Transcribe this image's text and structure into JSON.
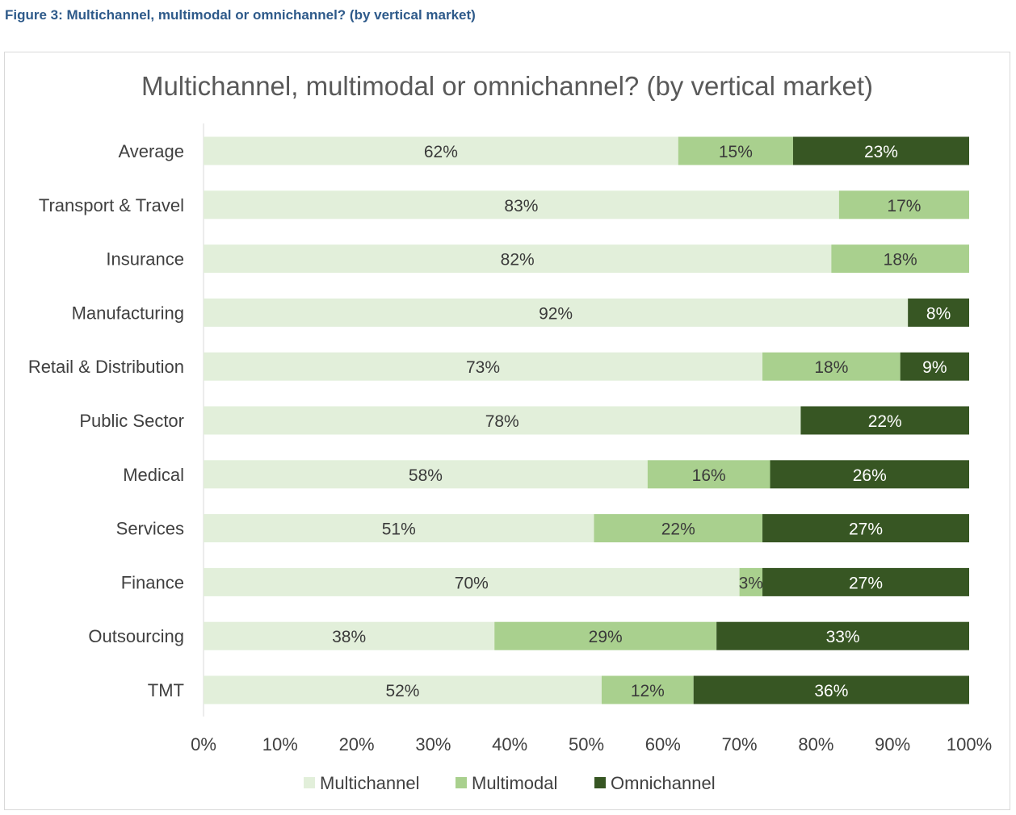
{
  "figure_caption": "Figure 3: Multichannel, multimodal or omnichannel? (by vertical market)",
  "chart_data": {
    "type": "bar",
    "orientation": "horizontal",
    "stacked": true,
    "title": "Multichannel, multimodal or omnichannel? (by vertical market)",
    "categories": [
      "Average",
      "Transport & Travel",
      "Insurance",
      "Manufacturing",
      "Retail & Distribution",
      "Public Sector",
      "Medical",
      "Services",
      "Finance",
      "Outsourcing",
      "TMT"
    ],
    "series": [
      {
        "name": "Multichannel",
        "color": "#e2efda",
        "label_color": "#3a3a3a",
        "values": [
          62,
          83,
          82,
          92,
          73,
          78,
          58,
          51,
          70,
          38,
          52
        ]
      },
      {
        "name": "Multimodal",
        "color": "#a9d08e",
        "label_color": "#3a3a3a",
        "values": [
          15,
          17,
          18,
          0,
          18,
          0,
          16,
          22,
          3,
          29,
          12
        ]
      },
      {
        "name": "Omnichannel",
        "color": "#375623",
        "label_color": "#ffffff",
        "values": [
          23,
          0,
          0,
          8,
          9,
          22,
          26,
          27,
          27,
          33,
          36
        ]
      }
    ],
    "value_suffix": "%",
    "xlim": [
      0,
      100
    ],
    "x_ticks": [
      "0%",
      "10%",
      "20%",
      "30%",
      "40%",
      "50%",
      "60%",
      "70%",
      "80%",
      "90%",
      "100%"
    ],
    "grid": false,
    "legend_position": "bottom"
  }
}
